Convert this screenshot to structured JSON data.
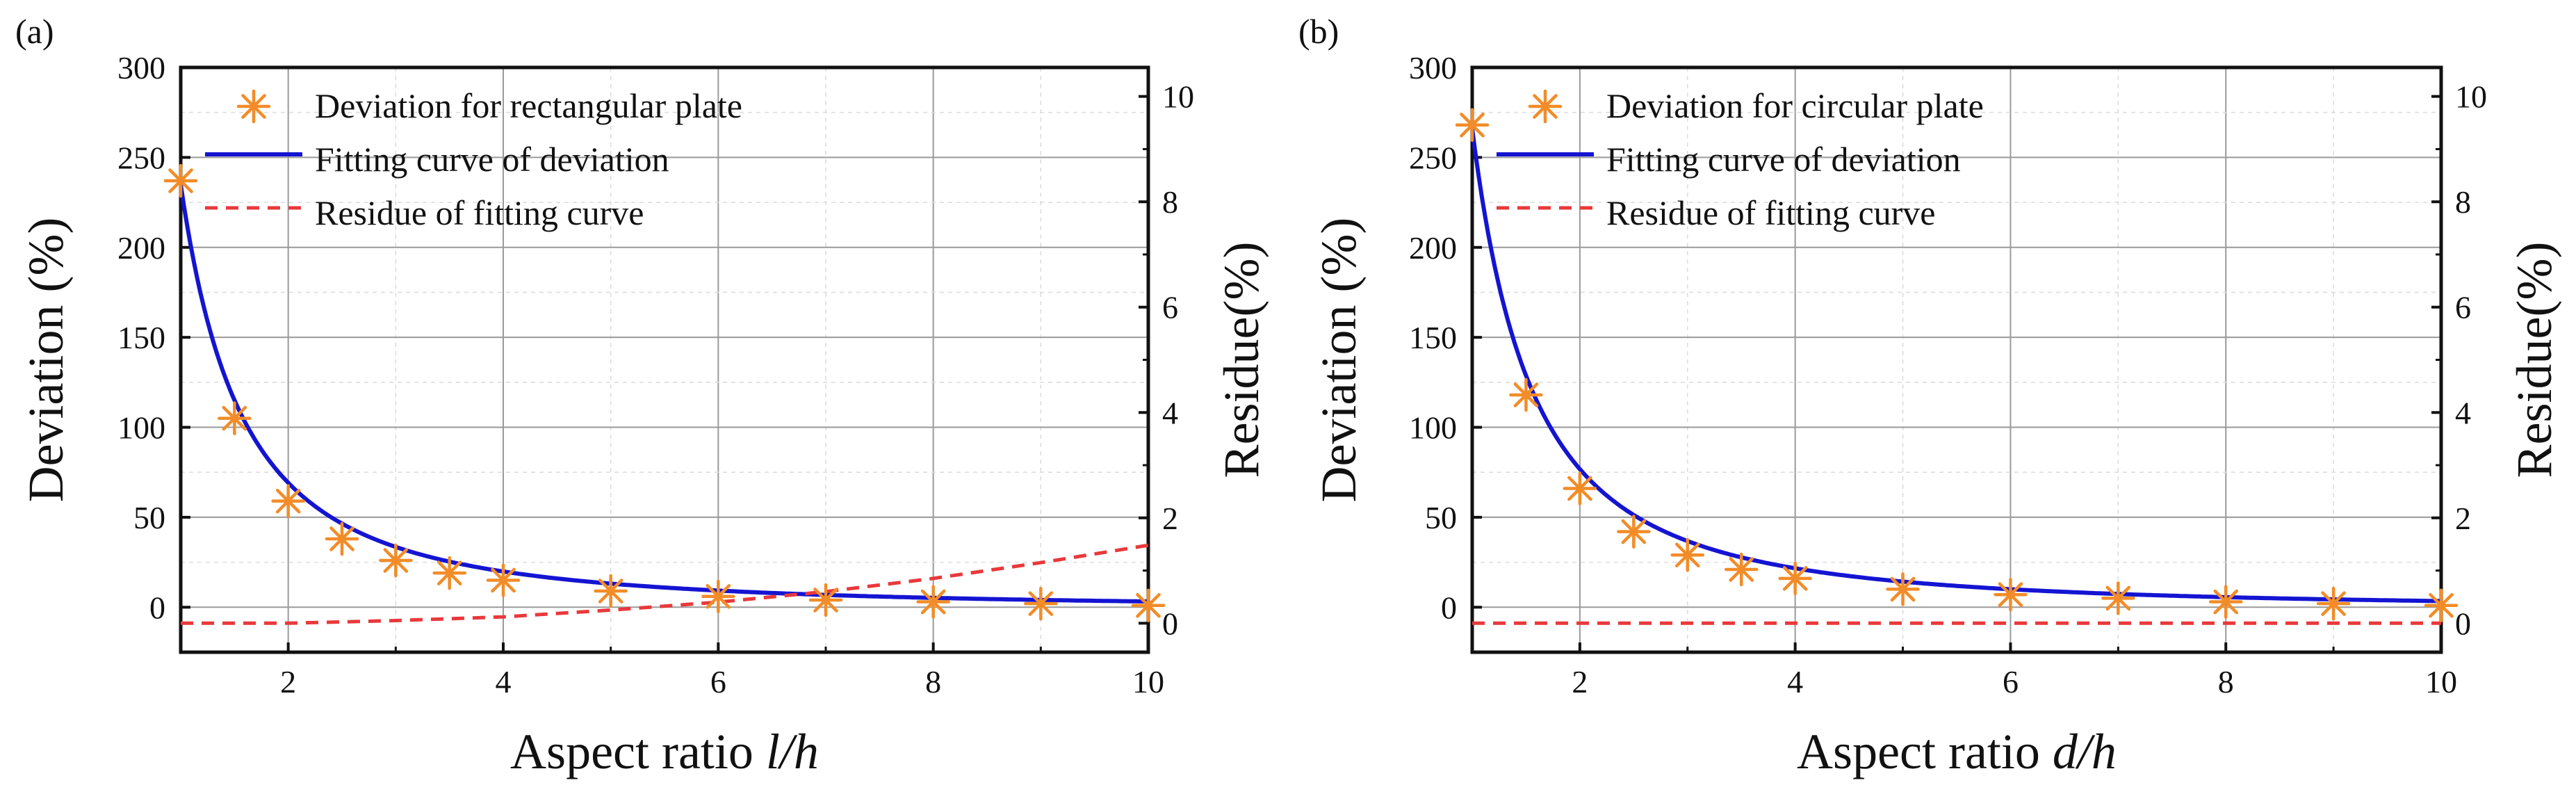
{
  "chart_data": [
    {
      "type": "scatter",
      "panel_label": "(a)",
      "xlabel": "Aspect ratio ",
      "xlabel_var": "l/h",
      "ylabel": "Deviation (%)",
      "y2label": "Residue(%)",
      "xlim": [
        1,
        10
      ],
      "ylim": [
        -25,
        300
      ],
      "y2lim": [
        -0.55,
        10.55
      ],
      "xticks": [
        2,
        4,
        6,
        8,
        10
      ],
      "yticks": [
        0,
        50,
        100,
        150,
        200,
        250,
        300
      ],
      "y2ticks": [
        0,
        2,
        4,
        6,
        8,
        10
      ],
      "grid": true,
      "legend_position": "top-left",
      "series": [
        {
          "name": "Deviation for rectangular plate",
          "kind": "markers",
          "color": "#f28c28",
          "x": [
            1,
            1.5,
            2,
            2.5,
            3,
            3.5,
            4,
            5,
            6,
            7,
            8,
            9,
            10
          ],
          "y": [
            237,
            105,
            59,
            38,
            26,
            19,
            15,
            9,
            6,
            4,
            3,
            2,
            1
          ]
        },
        {
          "name": "Fitting curve of deviation",
          "kind": "line",
          "color": "#1414d2",
          "model": {
            "a": 236,
            "b": 1.75,
            "c": -1
          },
          "x_range": [
            1,
            10
          ]
        },
        {
          "name": "Residue of fitting curve",
          "kind": "dashed-line",
          "color": "#e8393c",
          "axis": "right",
          "x": [
            1,
            2,
            3,
            4,
            5,
            6,
            7,
            8,
            9,
            10
          ],
          "y": [
            0.0,
            0.0,
            0.05,
            0.12,
            0.25,
            0.4,
            0.6,
            0.85,
            1.15,
            1.48
          ]
        }
      ]
    },
    {
      "type": "scatter",
      "panel_label": "(b)",
      "xlabel": "Aspect ratio ",
      "xlabel_var": "d/h",
      "ylabel": "Deviation (%)",
      "y2label": "Residue(%)",
      "xlim": [
        1,
        10
      ],
      "ylim": [
        -25,
        300
      ],
      "y2lim": [
        -0.55,
        10.55
      ],
      "xticks": [
        2,
        4,
        6,
        8,
        10
      ],
      "yticks": [
        0,
        50,
        100,
        150,
        200,
        250,
        300
      ],
      "y2ticks": [
        0,
        2,
        4,
        6,
        8,
        10
      ],
      "grid": true,
      "legend_position": "top-left",
      "series": [
        {
          "name": "Deviation for circular plate",
          "kind": "markers",
          "color": "#f28c28",
          "x": [
            1,
            1.5,
            2,
            2.5,
            3,
            3.5,
            4,
            5,
            6,
            7,
            8,
            9,
            10
          ],
          "y": [
            268,
            118,
            66,
            42,
            29,
            21,
            16,
            10,
            7,
            5,
            3,
            2,
            1
          ]
        },
        {
          "name": "Fitting curve of deviation",
          "kind": "line",
          "color": "#1414d2",
          "model": {
            "a": 267,
            "b": 1.78,
            "c": -1
          },
          "x_range": [
            1,
            10
          ]
        },
        {
          "name": "Residue of fitting curve",
          "kind": "dashed-line",
          "color": "#e8393c",
          "axis": "right",
          "x": [
            1,
            10
          ],
          "y": [
            0.0,
            0.0
          ]
        }
      ]
    }
  ]
}
